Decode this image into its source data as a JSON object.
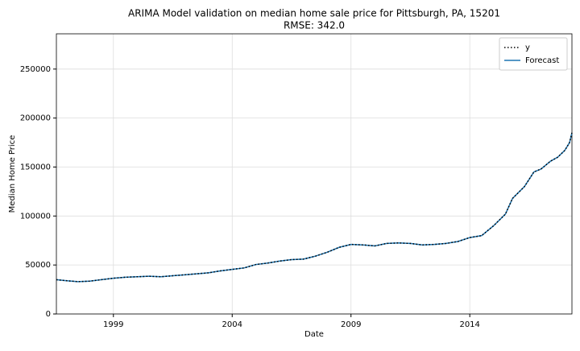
{
  "chart_data": {
    "type": "line",
    "title": "ARIMA Model validation on median home sale price for Pittsburgh, PA, 15201",
    "subtitle": "RMSE: 342.0",
    "x_label": "Date",
    "y_label": "Median Home Price",
    "x": [
      1996.6,
      1997.0,
      1997.5,
      1998.0,
      1998.5,
      1999.0,
      1999.5,
      2000.0,
      2000.5,
      2001.0,
      2001.5,
      2002.0,
      2002.5,
      2003.0,
      2003.5,
      2004.0,
      2004.5,
      2005.0,
      2005.5,
      2006.0,
      2006.5,
      2007.0,
      2007.5,
      2008.0,
      2008.5,
      2009.0,
      2009.5,
      2010.0,
      2010.5,
      2011.0,
      2011.5,
      2012.0,
      2012.5,
      2013.0,
      2013.5,
      2014.0,
      2014.5,
      2015.0,
      2015.5,
      2015.8,
      2016.3,
      2016.7,
      2017.0,
      2017.4,
      2017.7,
      2018.0,
      2018.2,
      2018.3
    ],
    "series": [
      {
        "name": "y",
        "color": "#000000",
        "dash": "dotted",
        "values": [
          35000,
          34000,
          33000,
          33500,
          35000,
          36500,
          37500,
          38000,
          38500,
          38000,
          39000,
          40000,
          41000,
          42000,
          44000,
          45500,
          47000,
          50500,
          52000,
          54000,
          55500,
          56000,
          59000,
          63000,
          68000,
          71000,
          70500,
          69500,
          72000,
          72500,
          72000,
          70500,
          71000,
          72000,
          74000,
          78000,
          80000,
          90000,
          102000,
          118000,
          130000,
          145000,
          148000,
          156000,
          160000,
          167000,
          175000,
          185000
        ]
      },
      {
        "name": "Forecast",
        "color": "#1f77b4",
        "dash": "solid",
        "values": [
          35000,
          34000,
          33000,
          33500,
          35000,
          36500,
          37500,
          38000,
          38500,
          38000,
          39000,
          40000,
          41000,
          42000,
          44000,
          45500,
          47000,
          50500,
          52000,
          54000,
          55500,
          56000,
          59000,
          63000,
          68000,
          71000,
          70500,
          69500,
          72000,
          72500,
          72000,
          70500,
          71000,
          72000,
          74000,
          78000,
          80000,
          90000,
          102000,
          118000,
          130000,
          145000,
          148000,
          156000,
          160000,
          167000,
          175000,
          185000
        ]
      }
    ],
    "xlim": [
      1996.6,
      2018.3
    ],
    "xticks": [
      1999,
      2004,
      2009,
      2014
    ],
    "ylim": [
      0,
      286000
    ],
    "yticks": [
      0,
      50000,
      100000,
      150000,
      200000,
      250000
    ],
    "grid": true,
    "legend": "upper right"
  }
}
